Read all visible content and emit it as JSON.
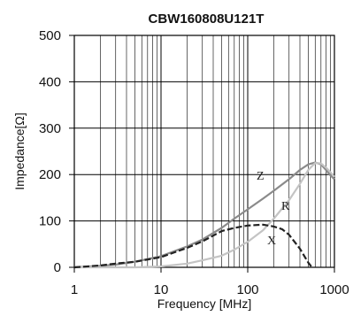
{
  "chart_data": {
    "type": "line",
    "title": "CBW160808U121T",
    "xlabel": "Frequency [MHz]",
    "ylabel": "Impedance[Ω]",
    "x_scale": "log",
    "xlim": [
      1,
      1000
    ],
    "ylim": [
      0,
      500
    ],
    "x_ticks": [
      1,
      10,
      100,
      1000
    ],
    "x_tick_labels": [
      "1",
      "10",
      "100",
      "1000"
    ],
    "y_ticks": [
      0,
      100,
      200,
      300,
      400,
      500
    ],
    "y_tick_labels": [
      "0",
      "100",
      "200",
      "300",
      "400",
      "500"
    ],
    "grid": true,
    "series": [
      {
        "name": "Z",
        "color": "#8a8a8a",
        "dash": "solid",
        "points": [
          [
            1,
            0
          ],
          [
            2,
            3
          ],
          [
            3,
            6
          ],
          [
            5,
            12
          ],
          [
            10,
            24
          ],
          [
            20,
            45
          ],
          [
            30,
            60
          ],
          [
            50,
            85
          ],
          [
            70,
            105
          ],
          [
            100,
            125
          ],
          [
            150,
            148
          ],
          [
            200,
            165
          ],
          [
            300,
            190
          ],
          [
            400,
            210
          ],
          [
            500,
            222
          ],
          [
            600,
            226
          ],
          [
            700,
            222
          ],
          [
            800,
            210
          ],
          [
            900,
            198
          ],
          [
            1000,
            190
          ]
        ]
      },
      {
        "name": "R",
        "color": "#c4c4c4",
        "dash": "solid",
        "points": [
          [
            1,
            0
          ],
          [
            5,
            0
          ],
          [
            10,
            2
          ],
          [
            20,
            8
          ],
          [
            30,
            15
          ],
          [
            50,
            25
          ],
          [
            70,
            38
          ],
          [
            100,
            55
          ],
          [
            150,
            80
          ],
          [
            200,
            105
          ],
          [
            300,
            145
          ],
          [
            400,
            180
          ],
          [
            500,
            210
          ],
          [
            600,
            225
          ],
          [
            700,
            224
          ],
          [
            800,
            215
          ],
          [
            900,
            205
          ],
          [
            1000,
            195
          ]
        ]
      },
      {
        "name": "X",
        "color": "#222222",
        "dash": "dashed",
        "points": [
          [
            1,
            0
          ],
          [
            2,
            4
          ],
          [
            3,
            8
          ],
          [
            5,
            12
          ],
          [
            10,
            22
          ],
          [
            20,
            42
          ],
          [
            30,
            56
          ],
          [
            50,
            78
          ],
          [
            70,
            85
          ],
          [
            100,
            90
          ],
          [
            150,
            92
          ],
          [
            200,
            88
          ],
          [
            250,
            82
          ],
          [
            300,
            70
          ],
          [
            400,
            40
          ],
          [
            500,
            10
          ],
          [
            550,
            0
          ]
        ]
      }
    ]
  }
}
